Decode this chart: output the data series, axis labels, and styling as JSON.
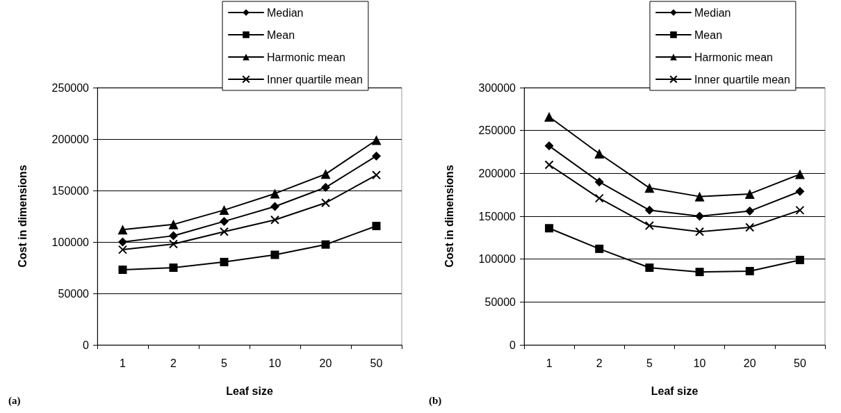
{
  "chart_data": [
    {
      "type": "line",
      "xlabel": "Leaf size",
      "ylabel": "Cost in dimensions",
      "annotations": [
        "(a)"
      ],
      "categories": [
        "1",
        "2",
        "5",
        "10",
        "20",
        "50"
      ],
      "ylim": [
        0,
        250000
      ],
      "yticks": [
        0,
        50000,
        100000,
        150000,
        200000,
        250000
      ],
      "grid": "y",
      "legend": "top right",
      "line_style": "solid",
      "series": [
        {
          "name": "Median",
          "color": "#000000",
          "marker": "diamond",
          "values": [
            100000,
            106000,
            120000,
            134500,
            153000,
            183500
          ]
        },
        {
          "name": "Mean",
          "color": "#000000",
          "marker": "square",
          "values": [
            73000,
            75000,
            80500,
            87500,
            97500,
            115500
          ]
        },
        {
          "name": "Harmonic mean",
          "color": "#000000",
          "marker": "triangle",
          "values": [
            112000,
            117000,
            131000,
            147000,
            166000,
            199000
          ]
        },
        {
          "name": "Inner quartile mean",
          "color": "#000000",
          "marker": "cross",
          "values": [
            92500,
            98000,
            110000,
            121500,
            138000,
            165000
          ]
        }
      ]
    },
    {
      "type": "line",
      "xlabel": "Leaf size",
      "ylabel": "Cost in dimensions",
      "annotations": [
        "(b)"
      ],
      "categories": [
        "1",
        "2",
        "5",
        "10",
        "20",
        "50"
      ],
      "ylim": [
        0,
        300000
      ],
      "yticks": [
        0,
        50000,
        100000,
        150000,
        200000,
        250000,
        300000
      ],
      "grid": "y",
      "legend": "top right",
      "line_style": "solid",
      "series": [
        {
          "name": "Median",
          "color": "#000000",
          "marker": "diamond",
          "values": [
            232000,
            190000,
            157000,
            150000,
            156000,
            179000
          ]
        },
        {
          "name": "Mean",
          "color": "#000000",
          "marker": "square",
          "values": [
            136000,
            112000,
            90000,
            85000,
            86000,
            99000
          ]
        },
        {
          "name": "Harmonic mean",
          "color": "#000000",
          "marker": "triangle",
          "values": [
            266000,
            223000,
            183000,
            173000,
            176000,
            199000
          ]
        },
        {
          "name": "Inner quartile mean",
          "color": "#000000",
          "marker": "cross",
          "values": [
            210000,
            171000,
            139000,
            132000,
            137000,
            157000
          ]
        }
      ]
    }
  ]
}
